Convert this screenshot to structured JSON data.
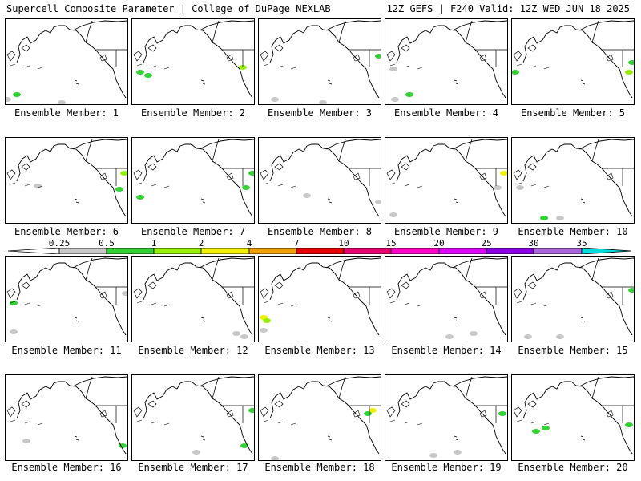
{
  "header": {
    "left": "Supercell Composite Parameter | College of DuPage NEXLAB",
    "right": "12Z GEFS | F240 Valid: 12Z WED JUN 18 2025"
  },
  "members": [
    {
      "label": "Ensemble Member: 1"
    },
    {
      "label": "Ensemble Member: 2"
    },
    {
      "label": "Ensemble Member: 3"
    },
    {
      "label": "Ensemble Member: 4"
    },
    {
      "label": "Ensemble Member: 5"
    },
    {
      "label": "Ensemble Member: 6"
    },
    {
      "label": "Ensemble Member: 7"
    },
    {
      "label": "Ensemble Member: 8"
    },
    {
      "label": "Ensemble Member: 9"
    },
    {
      "label": "Ensemble Member: 10"
    },
    {
      "label": "Ensemble Member: 11"
    },
    {
      "label": "Ensemble Member: 12"
    },
    {
      "label": "Ensemble Member: 13"
    },
    {
      "label": "Ensemble Member: 14"
    },
    {
      "label": "Ensemble Member: 15"
    },
    {
      "label": "Ensemble Member: 16"
    },
    {
      "label": "Ensemble Member: 17"
    },
    {
      "label": "Ensemble Member: 18"
    },
    {
      "label": "Ensemble Member: 19"
    },
    {
      "label": "Ensemble Member: 20"
    }
  ],
  "colorbar": {
    "ticks": [
      "0.25",
      "0.5",
      "1",
      "2",
      "4",
      "7",
      "10",
      "15",
      "20",
      "25",
      "30",
      "35"
    ],
    "colors": [
      "#c8c8c8",
      "#32d232",
      "#96f000",
      "#f0f000",
      "#f0a000",
      "#e60000",
      "#e6006e",
      "#ff00c8",
      "#dc00ff",
      "#8c00e6",
      "#aa64dc"
    ],
    "below_color": "#ffffff",
    "above_color": "#00dcdc"
  }
}
